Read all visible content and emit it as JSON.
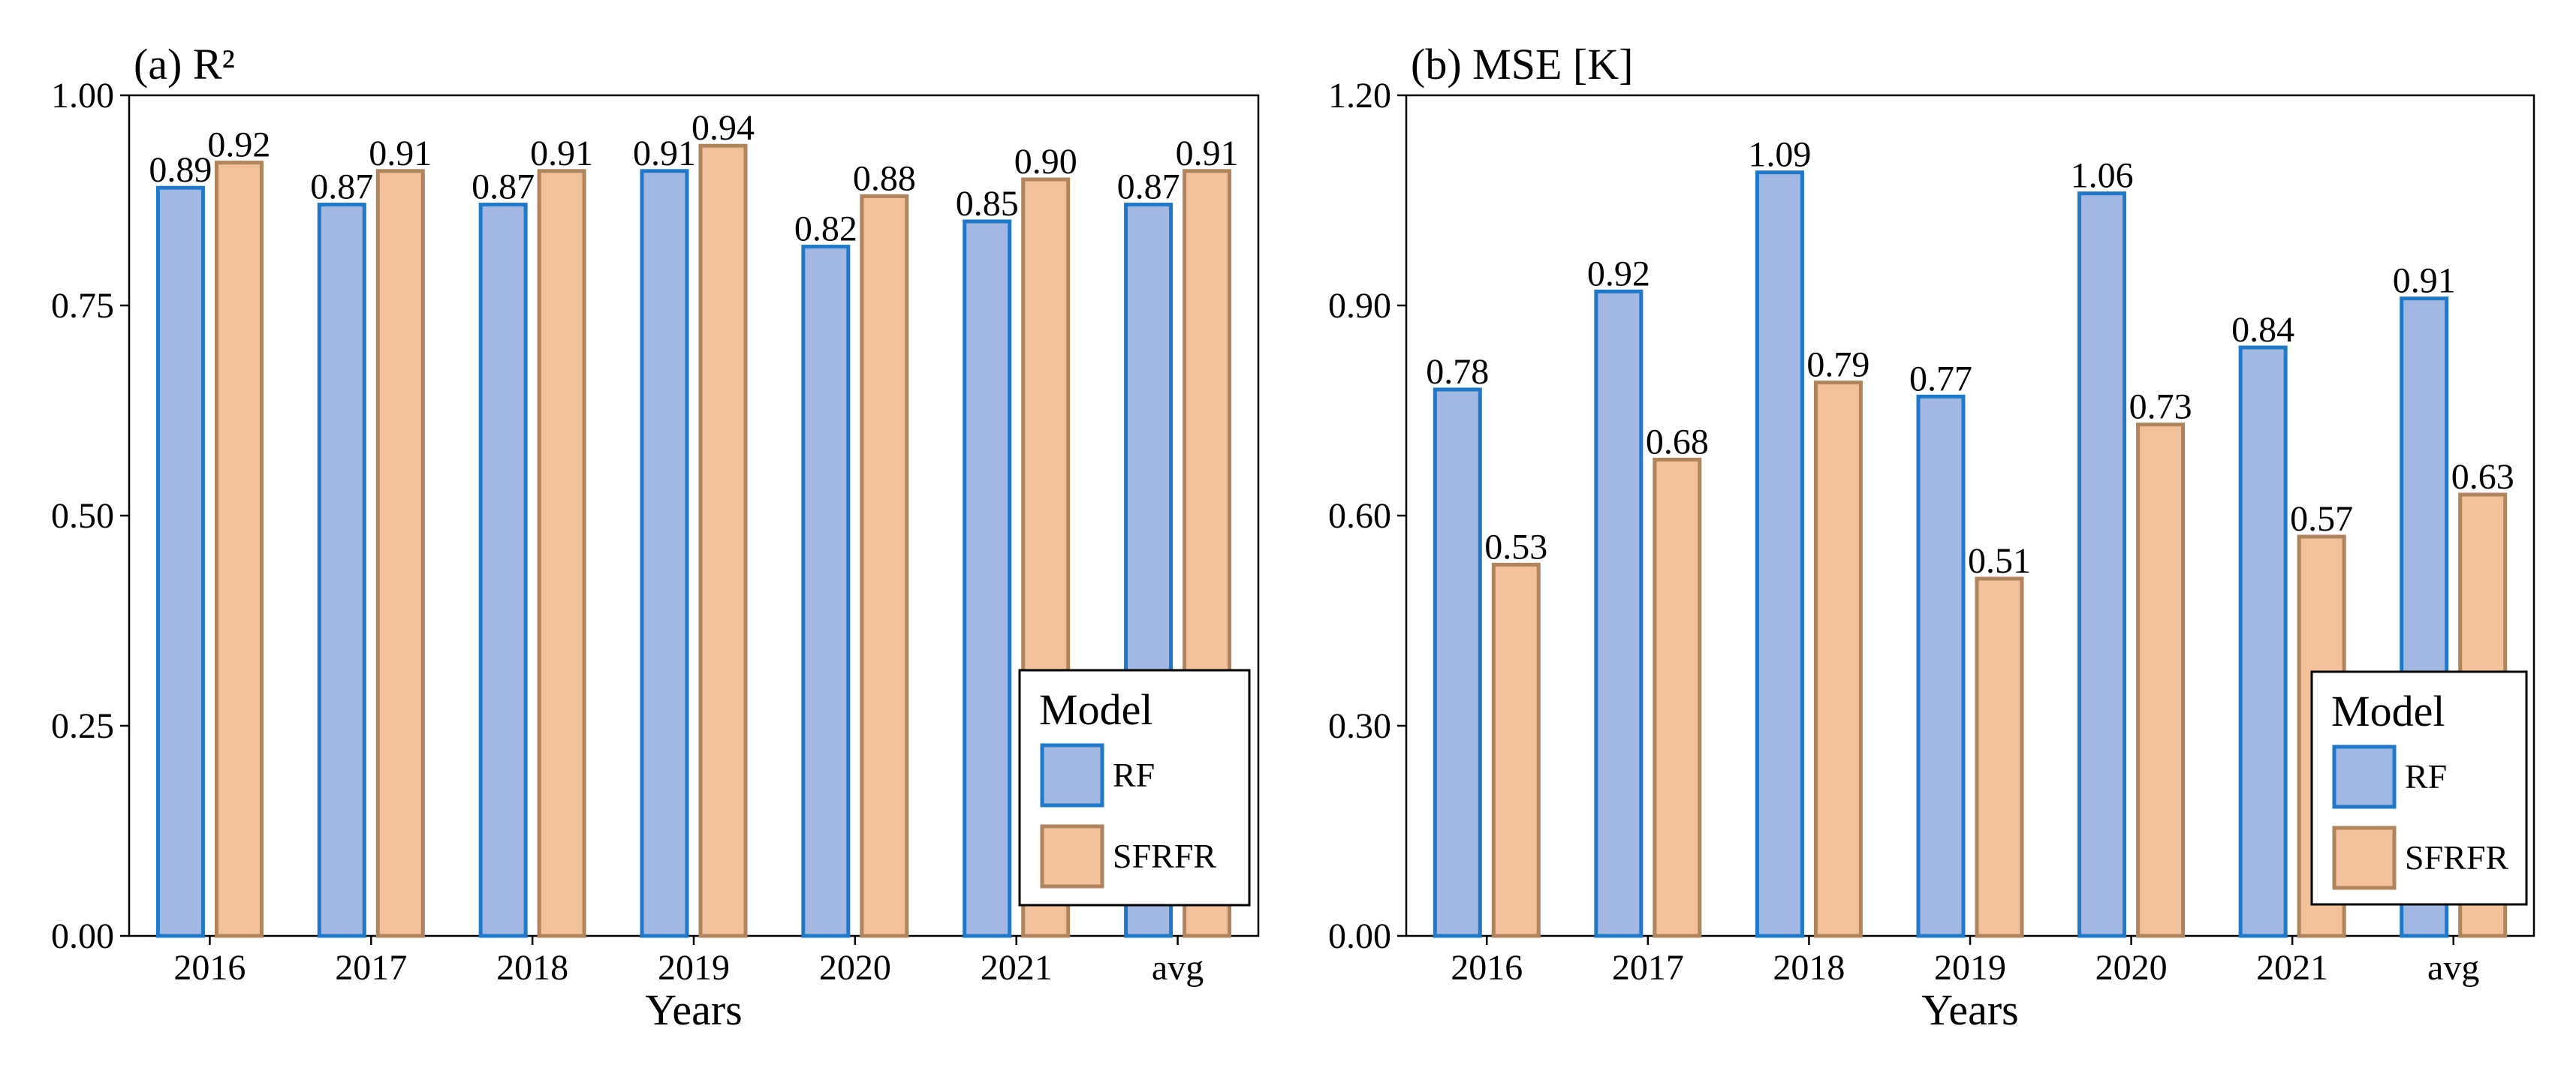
{
  "colors": {
    "rf_fill": "#a2b8e3",
    "rf_stroke": "#1f78c8",
    "sfrfr_fill": "#f2c09a",
    "sfrfr_stroke": "#b0845c"
  },
  "chart_data": [
    {
      "type": "bar",
      "title": "(a) R²",
      "xlabel": "Years",
      "ylabel": "",
      "categories": [
        "2016",
        "2017",
        "2018",
        "2019",
        "2020",
        "2021",
        "avg"
      ],
      "ylim": [
        0,
        1.0
      ],
      "yticks": [
        "0.00",
        "0.25",
        "0.50",
        "0.75",
        "1.00"
      ],
      "ytick_values": [
        0,
        0.25,
        0.5,
        0.75,
        1.0
      ],
      "series": [
        {
          "name": "RF",
          "values": [
            0.89,
            0.87,
            0.87,
            0.91,
            0.82,
            0.85,
            0.87
          ],
          "labels": [
            "0.89",
            "0.87",
            "0.87",
            "0.91",
            "0.82",
            "0.85",
            "0.87"
          ]
        },
        {
          "name": "SFRFR",
          "values": [
            0.92,
            0.91,
            0.91,
            0.94,
            0.88,
            0.9,
            0.91
          ],
          "labels": [
            "0.92",
            "0.91",
            "0.91",
            "0.94",
            "0.88",
            "0.90",
            "0.91"
          ]
        }
      ],
      "legend": {
        "title": "Model",
        "entries": [
          "RF",
          "SFRFR"
        ],
        "position": "bottom-right"
      },
      "grid": false
    },
    {
      "type": "bar",
      "title": "(b) MSE [K]",
      "xlabel": "Years",
      "ylabel": "",
      "categories": [
        "2016",
        "2017",
        "2018",
        "2019",
        "2020",
        "2021",
        "avg"
      ],
      "ylim": [
        0,
        1.2
      ],
      "yticks": [
        "0.00",
        "0.30",
        "0.60",
        "0.90",
        "1.20"
      ],
      "ytick_values": [
        0,
        0.3,
        0.6,
        0.9,
        1.2
      ],
      "series": [
        {
          "name": "RF",
          "values": [
            0.78,
            0.92,
            1.09,
            0.77,
            1.06,
            0.84,
            0.91
          ],
          "labels": [
            "0.78",
            "0.92",
            "1.09",
            "0.77",
            "1.06",
            "0.84",
            "0.91"
          ]
        },
        {
          "name": "SFRFR",
          "values": [
            0.53,
            0.68,
            0.79,
            0.51,
            0.73,
            0.57,
            0.63
          ],
          "labels": [
            "0.53",
            "0.68",
            "0.79",
            "0.51",
            "0.73",
            "0.57",
            "0.63"
          ]
        }
      ],
      "legend": {
        "title": "Model",
        "entries": [
          "RF",
          "SFRFR"
        ],
        "position": "bottom-right"
      },
      "grid": false
    }
  ]
}
